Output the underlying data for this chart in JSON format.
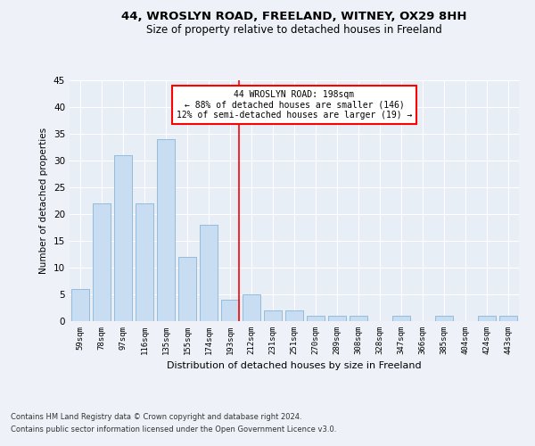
{
  "title1": "44, WROSLYN ROAD, FREELAND, WITNEY, OX29 8HH",
  "title2": "Size of property relative to detached houses in Freeland",
  "xlabel": "Distribution of detached houses by size in Freeland",
  "ylabel": "Number of detached properties",
  "categories": [
    "59sqm",
    "78sqm",
    "97sqm",
    "116sqm",
    "135sqm",
    "155sqm",
    "174sqm",
    "193sqm",
    "212sqm",
    "231sqm",
    "251sqm",
    "270sqm",
    "289sqm",
    "308sqm",
    "328sqm",
    "347sqm",
    "366sqm",
    "385sqm",
    "404sqm",
    "424sqm",
    "443sqm"
  ],
  "values": [
    6,
    22,
    31,
    22,
    34,
    12,
    18,
    4,
    5,
    2,
    2,
    1,
    1,
    1,
    0,
    1,
    0,
    1,
    0,
    1,
    1
  ],
  "bar_color": "#c9ddf2",
  "bar_edge_color": "#8ab4d8",
  "highlight_index": 7,
  "annotation_title": "44 WROSLYN ROAD: 198sqm",
  "annotation_line1": "← 88% of detached houses are smaller (146)",
  "annotation_line2": "12% of semi-detached houses are larger (19) →",
  "footer1": "Contains HM Land Registry data © Crown copyright and database right 2024.",
  "footer2": "Contains public sector information licensed under the Open Government Licence v3.0.",
  "ylim": [
    0,
    45
  ],
  "yticks": [
    0,
    5,
    10,
    15,
    20,
    25,
    30,
    35,
    40,
    45
  ],
  "bg_color": "#eef2f8",
  "plot_bg_color": "#e8eef6"
}
